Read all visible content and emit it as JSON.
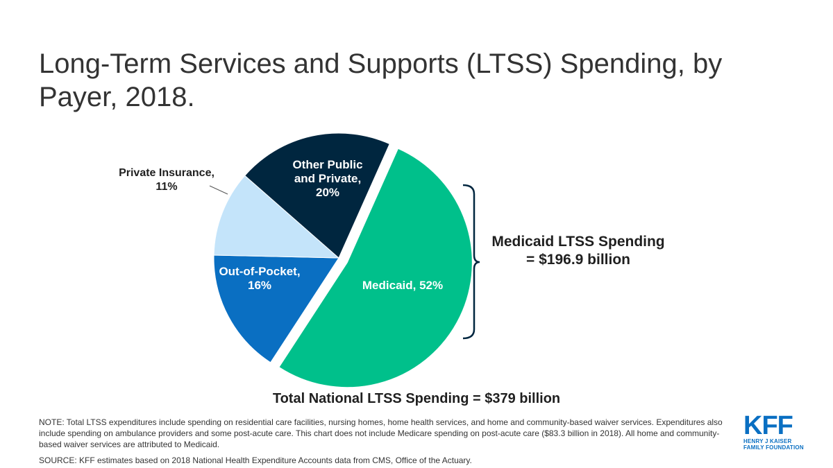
{
  "title": "Long-Term Services and Supports (LTSS) Spending, by Payer, 2018.",
  "chart_data": {
    "type": "pie",
    "title": "Long-Term Services and Supports (LTSS) Spending, by Payer, 2018.",
    "slices": [
      {
        "name": "Medicaid",
        "value": 52,
        "label": "Medicaid, 52%",
        "color": "#00c08b",
        "exploded": true
      },
      {
        "name": "Out-of-Pocket",
        "value": 16,
        "label": "Out-of-Pocket,\n16%",
        "color": "#0a6fc2",
        "exploded": false
      },
      {
        "name": "Private Insurance",
        "value": 11,
        "label": "Private Insurance,\n11%",
        "color": "#c4e4fa",
        "exploded": false
      },
      {
        "name": "Other Public and Private",
        "value": 20,
        "label": "Other Public\nand Private,\n20%",
        "color": "#00263f",
        "exploded": false
      }
    ],
    "callout": {
      "line1": "Medicaid LTSS Spending",
      "line2": "= $196.9 billion"
    },
    "total": "Total National LTSS Spending = $379 billion"
  },
  "note": "NOTE: Total LTSS expenditures include spending on residential care facilities, nursing homes, home health services, and home and community-based waiver services. Expenditures also include spending on ambulance providers and some post-acute care. This chart does not include Medicare spending on post-acute care ($83.3 billion in 2018). All home and community-based waiver services are attributed to Medicaid.",
  "source": "SOURCE: KFF estimates based on 2018 National Health Expenditure Accounts data from CMS, Office of the Actuary.",
  "logo": {
    "mark": "KFF",
    "line1": "HENRY J KAISER",
    "line2": "FAMILY FOUNDATION"
  },
  "colors": {
    "bracket": "#00263f",
    "leader": "#555555"
  }
}
